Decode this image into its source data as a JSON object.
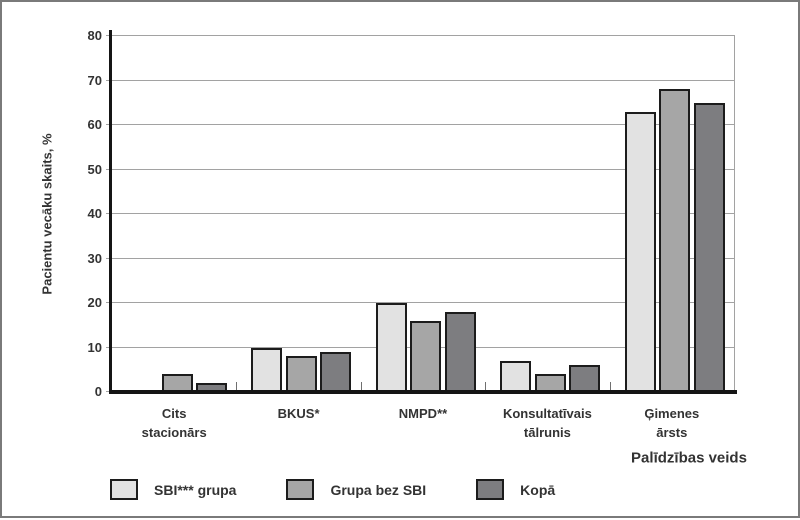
{
  "figure": {
    "background": "#ffffff",
    "border_color": "#7a7a7a"
  },
  "chart_data": {
    "type": "bar",
    "title": "",
    "ylabel": "Pacientu vecāku skaits, %",
    "xlabel": "Palīdzības veids",
    "ylim": [
      0,
      80
    ],
    "ytick_step": 10,
    "yticks": [
      0,
      10,
      20,
      30,
      40,
      50,
      60,
      70,
      80
    ],
    "grid": true,
    "legend_position": "bottom",
    "categories": [
      [
        "Cits",
        "stacionārs"
      ],
      [
        "BKUS*"
      ],
      [
        "NMPD**"
      ],
      [
        "Konsultatīvais",
        "tālrunis"
      ],
      [
        "Ģimenes",
        "ārsts"
      ]
    ],
    "series": [
      {
        "name": "SBI*** grupa",
        "color": "#e2e2e2",
        "values": [
          0,
          10,
          20,
          7,
          63
        ]
      },
      {
        "name": "Grupa bez SBI",
        "color": "#a6a6a6",
        "values": [
          4,
          8,
          16,
          4,
          68
        ]
      },
      {
        "name": "Kopā",
        "color": "#7d7d80",
        "values": [
          2,
          9,
          18,
          6,
          65
        ]
      }
    ],
    "colors": {
      "axis": "#151515",
      "gridline": "#a2a2a2",
      "bar_border": "#1c1c1c",
      "text": "#333333"
    }
  }
}
